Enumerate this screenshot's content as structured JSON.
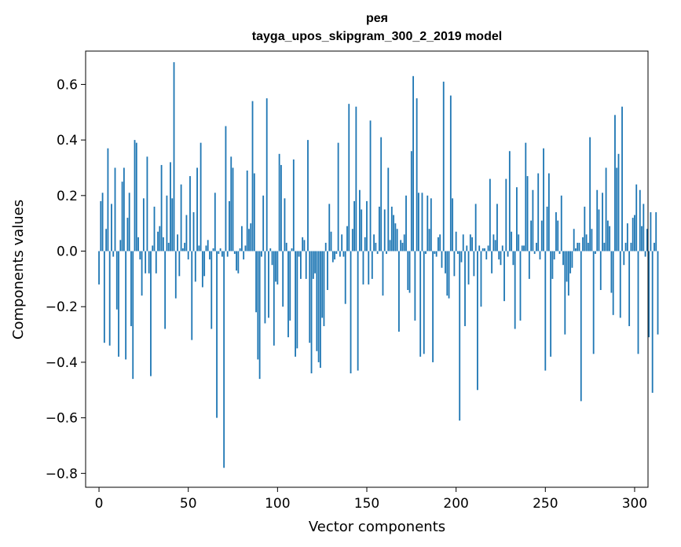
{
  "chart_data": {
    "type": "bar",
    "title_line1": "рея",
    "title_line2": "tayga_upos_skipgram_300_2_2019 model",
    "xlabel": "Vector components",
    "ylabel": "Components values",
    "xlim": [
      -7.5,
      307.5
    ],
    "ylim": [
      -0.85,
      0.72
    ],
    "xticks": [
      0,
      50,
      100,
      150,
      200,
      250,
      300
    ],
    "xtick_labels": [
      "0",
      "50",
      "100",
      "150",
      "200",
      "250",
      "300"
    ],
    "yticks": [
      -0.8,
      -0.6,
      -0.4,
      -0.2,
      0.0,
      0.2,
      0.4,
      0.6
    ],
    "ytick_labels": [
      "−0.8",
      "−0.6",
      "−0.4",
      "−0.2",
      "0.0",
      "0.2",
      "0.4",
      "0.6"
    ],
    "bar_color": "#1f77b4",
    "values": [
      -0.12,
      0.18,
      0.21,
      -0.33,
      0.08,
      0.37,
      -0.34,
      0.17,
      -0.02,
      0.3,
      -0.21,
      -0.38,
      0.04,
      0.25,
      0.3,
      -0.39,
      0.12,
      0.21,
      -0.27,
      -0.46,
      0.4,
      0.39,
      0.05,
      -0.03,
      -0.16,
      0.19,
      -0.08,
      0.34,
      -0.08,
      -0.45,
      0.02,
      0.16,
      -0.08,
      0.07,
      0.09,
      0.31,
      0.05,
      -0.28,
      0.2,
      0.03,
      0.32,
      0.19,
      0.68,
      -0.17,
      0.06,
      -0.09,
      0.24,
      0.01,
      0.03,
      0.13,
      -0.03,
      0.27,
      -0.32,
      0.14,
      -0.11,
      0.3,
      0.02,
      0.39,
      -0.13,
      -0.09,
      0.02,
      0.04,
      -0.03,
      -0.28,
      0.01,
      0.21,
      -0.6,
      -0.01,
      0.01,
      -0.02,
      -0.78,
      0.45,
      -0.02,
      0.18,
      0.34,
      0.3,
      -0.01,
      -0.07,
      -0.08,
      0.01,
      0.09,
      -0.03,
      0.02,
      0.29,
      0.08,
      0.1,
      0.54,
      0.28,
      -0.22,
      -0.39,
      -0.46,
      -0.02,
      0.2,
      -0.26,
      0.55,
      -0.24,
      0.01,
      -0.05,
      -0.34,
      -0.11,
      -0.12,
      0.35,
      0.31,
      -0.2,
      0.19,
      0.03,
      -0.31,
      -0.25,
      0.01,
      0.33,
      -0.38,
      -0.35,
      -0.02,
      -0.1,
      0.05,
      0.04,
      -0.1,
      0.4,
      -0.33,
      -0.44,
      -0.1,
      -0.08,
      -0.36,
      -0.4,
      -0.42,
      -0.24,
      -0.27,
      0.03,
      -0.14,
      0.17,
      0.07,
      -0.04,
      -0.03,
      -0.01,
      0.39,
      -0.02,
      0.06,
      -0.02,
      -0.19,
      0.09,
      0.53,
      -0.44,
      0.08,
      0.18,
      0.52,
      -0.43,
      0.22,
      0.15,
      -0.12,
      0.05,
      0.18,
      -0.12,
      0.47,
      -0.1,
      0.06,
      0.03,
      -0.01,
      0.16,
      0.41,
      -0.16,
      0.15,
      -0.01,
      0.3,
      0.04,
      0.16,
      0.13,
      0.1,
      0.08,
      -0.29,
      0.04,
      0.03,
      0.06,
      0.2,
      -0.14,
      -0.15,
      0.36,
      0.63,
      -0.25,
      0.55,
      0.21,
      -0.38,
      0.21,
      -0.37,
      -0.01,
      0.2,
      0.08,
      0.19,
      -0.4,
      -0.01,
      -0.02,
      0.05,
      0.06,
      -0.06,
      0.61,
      -0.08,
      -0.16,
      -0.17,
      0.56,
      0.19,
      -0.09,
      0.07,
      -0.01,
      -0.61,
      -0.04,
      0.06,
      -0.27,
      0.02,
      -0.12,
      0.06,
      0.05,
      -0.09,
      0.17,
      -0.5,
      0.02,
      -0.2,
      0.01,
      0.01,
      -0.03,
      0.02,
      0.26,
      -0.08,
      0.06,
      0.04,
      0.17,
      -0.03,
      -0.05,
      0.02,
      -0.18,
      0.26,
      -0.02,
      0.36,
      0.07,
      -0.05,
      -0.28,
      0.23,
      0.06,
      -0.25,
      0.02,
      0.02,
      0.39,
      0.27,
      -0.1,
      0.11,
      0.22,
      -0.01,
      0.03,
      0.28,
      -0.03,
      0.11,
      0.37,
      -0.43,
      0.16,
      0.28,
      -0.38,
      -0.1,
      -0.03,
      0.14,
      0.11,
      -0.01,
      0.2,
      -0.05,
      -0.3,
      -0.11,
      -0.16,
      -0.08,
      -0.06,
      0.08,
      0.01,
      0.03,
      0.03,
      -0.54,
      0.05,
      0.16,
      0.06,
      0.03,
      0.41,
      0.08,
      -0.37,
      -0.01,
      0.22,
      0.15,
      -0.14,
      0.21,
      0.03,
      0.3,
      0.11,
      0.09,
      -0.15,
      -0.23,
      0.49,
      0.3,
      0.35,
      -0.24,
      0.52,
      -0.05,
      0.03,
      0.1,
      -0.27,
      0.03,
      0.12,
      0.13,
      0.24,
      -0.37,
      0.22,
      0.09,
      0.17,
      -0.02,
      0.08,
      -0.31,
      0.14,
      -0.51,
      0.03,
      0.14,
      -0.3
    ]
  }
}
